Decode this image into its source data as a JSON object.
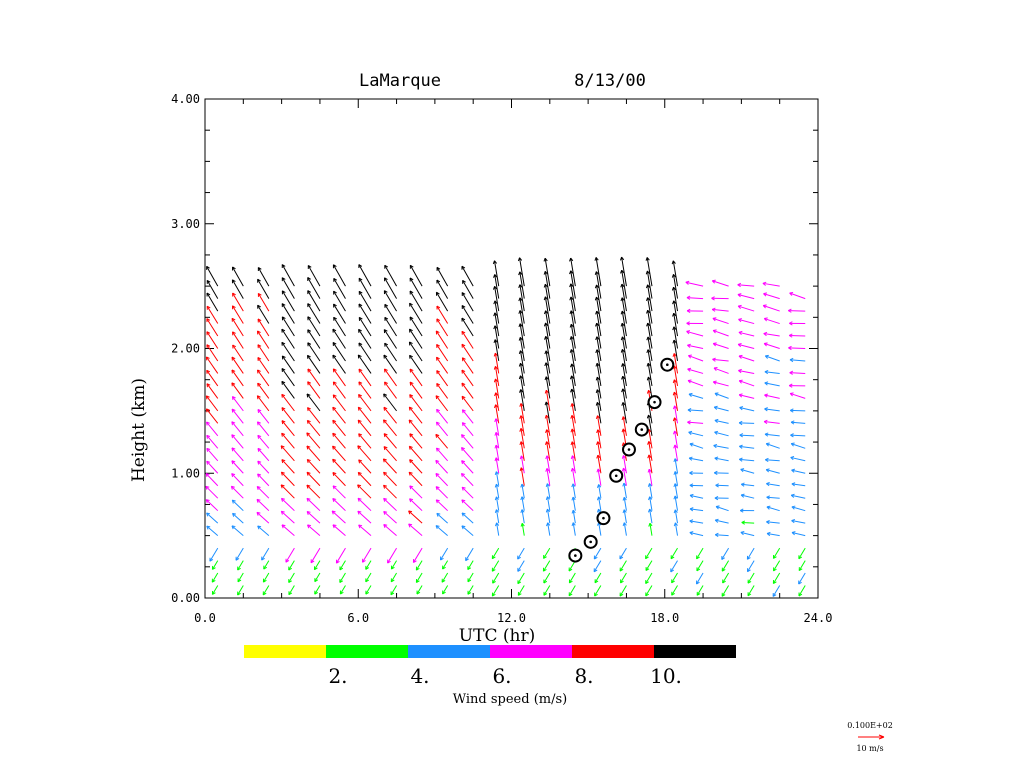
{
  "chart_data": {
    "type": "wind-profiler-barbs",
    "title": {
      "site": "LaMarque",
      "date": "8/13/00"
    },
    "xlabel": "UTC (hr)",
    "ylabel": "Height (km)",
    "xlim": [
      0,
      24
    ],
    "ylim": [
      0,
      4
    ],
    "x_ticks": [
      {
        "value": 0,
        "label": "0.0"
      },
      {
        "value": 6,
        "label": "6.0"
      },
      {
        "value": 12,
        "label": "12.0"
      },
      {
        "value": 18,
        "label": "18.0"
      },
      {
        "value": 24,
        "label": "24.0"
      }
    ],
    "y_ticks": [
      {
        "value": 0,
        "label": "0.00"
      },
      {
        "value": 1,
        "label": "1.00"
      },
      {
        "value": 2,
        "label": "2.00"
      },
      {
        "value": 3,
        "label": "3.00"
      },
      {
        "value": 4,
        "label": "4.00"
      }
    ],
    "profile_times_hr": [
      0.5,
      1.5,
      2.5,
      3.5,
      4.5,
      5.5,
      6.5,
      7.5,
      8.5,
      9.5,
      10.5,
      11.5,
      12.5,
      13.5,
      14.5,
      15.5,
      16.5,
      17.5,
      18.5,
      19.5,
      20.5,
      21.5,
      22.5,
      23.5
    ],
    "profile_tops_km": [
      2.5,
      2.5,
      2.5,
      2.5,
      2.5,
      2.5,
      2.5,
      2.5,
      2.5,
      2.55,
      2.55,
      2.55,
      2.55,
      2.55,
      2.55,
      2.55,
      2.55,
      2.5,
      2.5,
      2.5,
      2.5,
      2.5,
      2.5,
      2.4
    ],
    "height_step_km": 0.1,
    "colorbar": {
      "label": "Wind speed (m/s)",
      "colors": [
        "#ffff00",
        "#00ff00",
        "#1e90ff",
        "#ff00ff",
        "#ff0000",
        "#000000"
      ],
      "tick_labels": [
        "2.",
        "4.",
        "6.",
        "8.",
        "10."
      ]
    },
    "circle_markers": [
      {
        "time_hr": 14.5,
        "height_km": 0.34
      },
      {
        "time_hr": 15.1,
        "height_km": 0.45
      },
      {
        "time_hr": 15.6,
        "height_km": 0.64
      },
      {
        "time_hr": 16.1,
        "height_km": 0.98
      },
      {
        "time_hr": 16.6,
        "height_km": 1.19
      },
      {
        "time_hr": 17.1,
        "height_km": 1.35
      },
      {
        "time_hr": 17.6,
        "height_km": 1.57
      },
      {
        "time_hr": 18.1,
        "height_km": 1.87
      }
    ],
    "reference_vector": {
      "value_label": "0.100E+02",
      "unit_label": "10 m/s",
      "color": "#ff0000"
    }
  }
}
